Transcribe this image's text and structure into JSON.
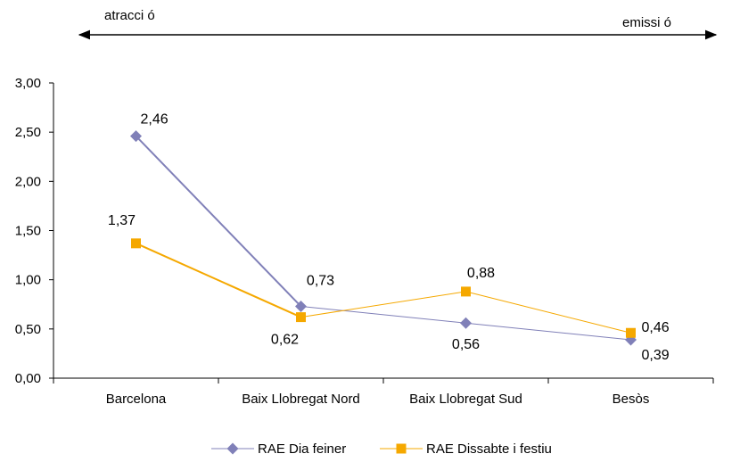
{
  "chart_data": {
    "type": "line",
    "title": "",
    "xlabel": "",
    "ylabel": "",
    "ylim": [
      0,
      3
    ],
    "y_ticks": [
      "0,00",
      "0,50",
      "1,00",
      "1,50",
      "2,00",
      "2,50",
      "3,00"
    ],
    "categories": [
      "Barcelona",
      "Baix Llobregat Nord",
      "Baix Llobregat Sud",
      "Besòs"
    ],
    "series": [
      {
        "name": "RAE Dia feiner",
        "values": [
          2.46,
          0.73,
          0.56,
          0.39
        ],
        "labels": [
          "2,46",
          "0,73",
          "0,56",
          "0,39"
        ],
        "color": "#8080B8",
        "marker": "diamond"
      },
      {
        "name": "RAE Dissabte i festiu",
        "values": [
          1.37,
          0.62,
          0.88,
          0.46
        ],
        "labels": [
          "1,37",
          "0,62",
          "0,88",
          "0,46"
        ],
        "color": "#F5A800",
        "marker": "square"
      }
    ],
    "grid": false,
    "legend": "bottom",
    "annotations": {
      "left": "atracci ó",
      "right": "emissi ó"
    }
  }
}
